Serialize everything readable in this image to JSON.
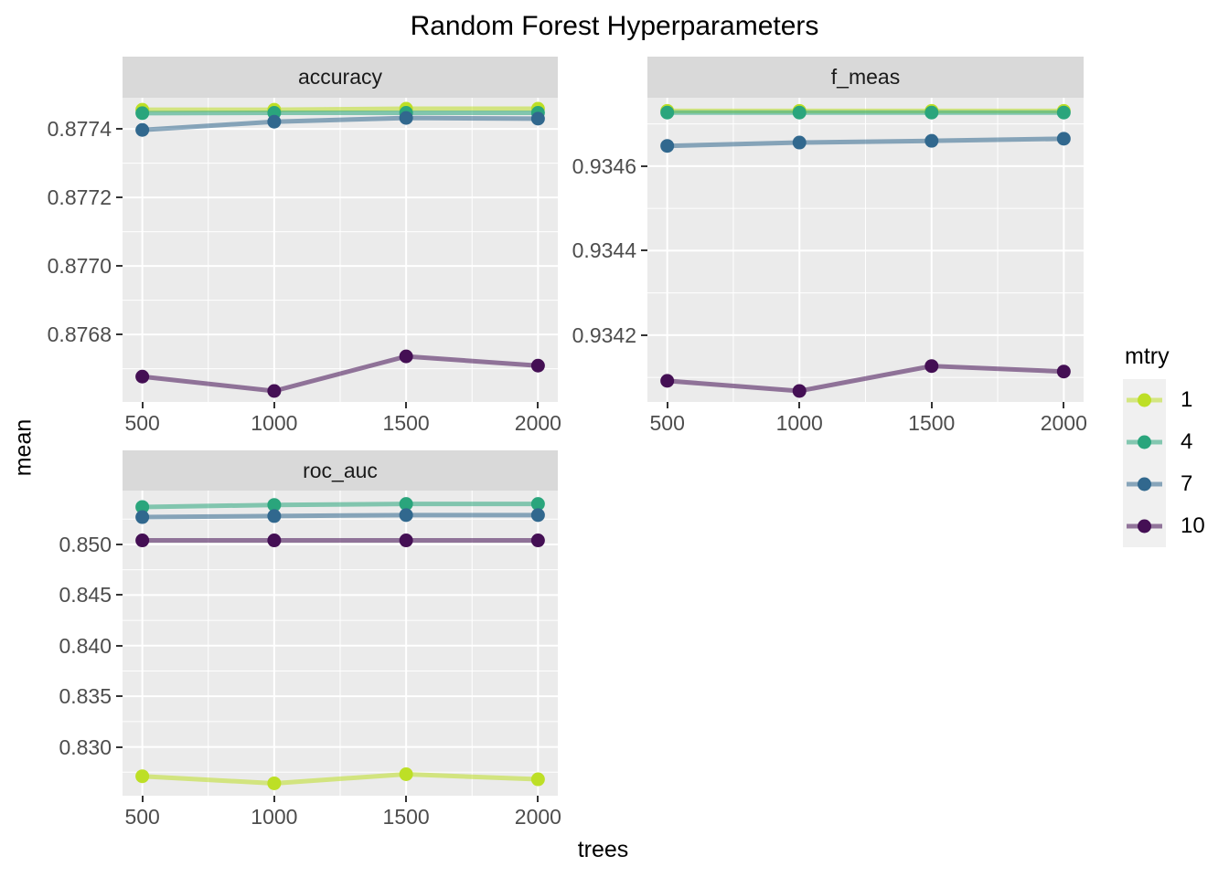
{
  "title": "Random Forest Hyperparameters",
  "axes": {
    "x_label": "trees",
    "y_label": "mean"
  },
  "legend": {
    "title": "mtry",
    "entries": [
      {
        "label": "1",
        "color": "#bddf26"
      },
      {
        "label": "4",
        "color": "#2aa57c"
      },
      {
        "label": "7",
        "color": "#31688e"
      },
      {
        "label": "10",
        "color": "#440f54"
      }
    ]
  },
  "colors": {
    "panel_bg": "#ebebeb",
    "strip_bg": "#d9d9d9",
    "gridline": "#ffffff",
    "tick_text": "#4d4d4d",
    "axis_text": "#000000",
    "legend_key_bg": "#f0f0f0",
    "tick_mark": "#333333"
  },
  "chart_data": {
    "type": "line",
    "title": "Random Forest Hyperparameters",
    "xlabel": "trees",
    "ylabel": "mean",
    "legend_title": "mtry",
    "legend_position": "right",
    "grid": true,
    "x": [
      500,
      1000,
      1500,
      2000
    ],
    "xlim": [
      425,
      2075
    ],
    "x_tick_labels": [
      "500",
      "1000",
      "1500",
      "2000"
    ],
    "facets": [
      {
        "name": "accuracy",
        "ylim": [
          0.876603,
          0.877491
        ],
        "yticks": {
          "values": [
            0.8768,
            0.877,
            0.8772,
            0.8774
          ],
          "labels": [
            "0.8768",
            "0.8770",
            "0.8772",
            "0.8774"
          ]
        },
        "series": [
          {
            "name": "1",
            "values": [
              0.877456,
              0.877456,
              0.877459,
              0.877459
            ]
          },
          {
            "name": "4",
            "values": [
              0.877446,
              0.877447,
              0.877447,
              0.877447
            ]
          },
          {
            "name": "7",
            "values": [
              0.877397,
              0.877421,
              0.877432,
              0.87743
            ]
          },
          {
            "name": "10",
            "values": [
              0.876677,
              0.876635,
              0.876736,
              0.876709
            ]
          }
        ]
      },
      {
        "name": "f_meas",
        "ylim": [
          0.934042,
          0.934762
        ],
        "yticks": {
          "values": [
            0.9342,
            0.9344,
            0.9346
          ],
          "labels": [
            "0.9342",
            "0.9344",
            "0.9346"
          ]
        },
        "series": [
          {
            "name": "1",
            "values": [
              0.934731,
              0.934731,
              0.934731,
              0.934731
            ]
          },
          {
            "name": "4",
            "values": [
              0.934727,
              0.934727,
              0.934727,
              0.934727
            ]
          },
          {
            "name": "7",
            "values": [
              0.934648,
              0.934656,
              0.93466,
              0.934665
            ]
          },
          {
            "name": "10",
            "values": [
              0.934092,
              0.934068,
              0.934127,
              0.934114
            ]
          }
        ]
      },
      {
        "name": "roc_auc",
        "ylim": [
          0.82518,
          0.85532
        ],
        "yticks": {
          "values": [
            0.83,
            0.835,
            0.84,
            0.845,
            0.85
          ],
          "labels": [
            "0.830",
            "0.835",
            "0.840",
            "0.845",
            "0.850"
          ]
        },
        "series": [
          {
            "name": "1",
            "values": [
              0.8271,
              0.8264,
              0.8273,
              0.8268
            ]
          },
          {
            "name": "4",
            "values": [
              0.8537,
              0.8539,
              0.854,
              0.854
            ]
          },
          {
            "name": "7",
            "values": [
              0.8527,
              0.8528,
              0.8529,
              0.8529
            ]
          },
          {
            "name": "10",
            "values": [
              0.8504,
              0.8504,
              0.8504,
              0.8504
            ]
          }
        ]
      }
    ]
  }
}
